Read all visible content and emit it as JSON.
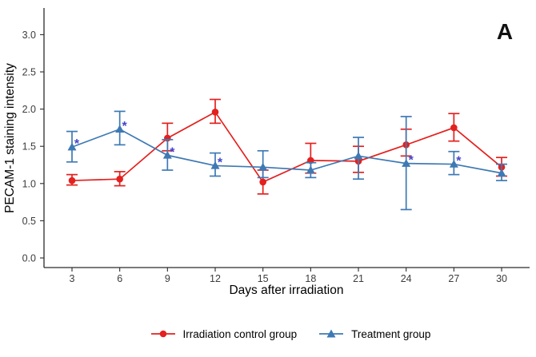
{
  "panel_label": "A",
  "chart_data": {
    "type": "line",
    "title": "",
    "xlabel": "Days after irradiation",
    "ylabel": "PECAM-1 staining intensity",
    "x": [
      3,
      6,
      9,
      12,
      15,
      18,
      21,
      24,
      27,
      30
    ],
    "x_ticks": [
      "3",
      "6",
      "9",
      "12",
      "15",
      "18",
      "21",
      "24",
      "27",
      "30"
    ],
    "y_ticks": [
      0.0,
      0.5,
      1.0,
      1.5,
      2.0,
      2.5,
      3.0
    ],
    "ylim": [
      0,
      3.3
    ],
    "grid": "off",
    "legend_position": "bottom",
    "error_bars": true,
    "significance_marker": "*",
    "star_color": "#4343cd",
    "axis_color": "#2b2b2b",
    "series": [
      {
        "name": "Irradiation control group",
        "marker": "circle",
        "color": "#e3211f",
        "values": [
          1.04,
          1.06,
          1.61,
          1.96,
          1.02,
          1.31,
          1.3,
          1.52,
          1.75,
          1.22
        ],
        "err_low": [
          0.98,
          0.97,
          1.44,
          1.81,
          0.86,
          1.14,
          1.15,
          1.37,
          1.57,
          1.1
        ],
        "err_high": [
          1.12,
          1.16,
          1.81,
          2.13,
          1.18,
          1.54,
          1.5,
          1.73,
          1.94,
          1.35
        ],
        "significant": [
          false,
          false,
          false,
          false,
          false,
          false,
          false,
          false,
          false,
          false
        ]
      },
      {
        "name": "Treatment group",
        "marker": "triangle",
        "color": "#3e79b4",
        "values": [
          1.49,
          1.73,
          1.38,
          1.24,
          1.22,
          1.18,
          1.37,
          1.27,
          1.26,
          1.14
        ],
        "err_low": [
          1.29,
          1.52,
          1.18,
          1.1,
          1.08,
          1.08,
          1.06,
          0.65,
          1.12,
          1.04
        ],
        "err_high": [
          1.7,
          1.97,
          1.59,
          1.41,
          1.44,
          1.28,
          1.62,
          1.9,
          1.43,
          1.26
        ],
        "significant": [
          true,
          true,
          true,
          true,
          false,
          false,
          false,
          true,
          true,
          false
        ]
      }
    ]
  }
}
